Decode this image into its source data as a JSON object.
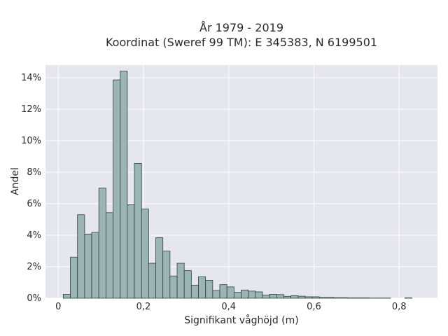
{
  "chart_data": {
    "type": "bar",
    "title_line1": "År 1979 - 2019",
    "title_line2": "Koordinat (Sweref 99 TM): E 345383, N 6199501",
    "xlabel": "Signifikant våghöjd (m)",
    "ylabel": "Andel",
    "xlim": [
      -0.03,
      0.89
    ],
    "ylim": [
      0,
      0.148
    ],
    "x_ticks": [
      {
        "value": 0.0,
        "label": "0"
      },
      {
        "value": 0.2,
        "label": "0,2"
      },
      {
        "value": 0.4,
        "label": "0,4"
      },
      {
        "value": 0.6,
        "label": "0,6"
      },
      {
        "value": 0.8,
        "label": "0,8"
      }
    ],
    "y_ticks": [
      {
        "value": 0.0,
        "label": "0%"
      },
      {
        "value": 0.02,
        "label": "2%"
      },
      {
        "value": 0.04,
        "label": "4%"
      },
      {
        "value": 0.06,
        "label": "6%"
      },
      {
        "value": 0.08,
        "label": "8%"
      },
      {
        "value": 0.1,
        "label": "10%"
      },
      {
        "value": 0.12,
        "label": "12%"
      },
      {
        "value": 0.14,
        "label": "14%"
      }
    ],
    "bin_width": 0.0167,
    "bin_starts": [
      0.0117,
      0.0284,
      0.0451,
      0.0618,
      0.0785,
      0.0952,
      0.1119,
      0.1286,
      0.1453,
      0.162,
      0.1787,
      0.1954,
      0.2121,
      0.2288,
      0.2455,
      0.2622,
      0.2789,
      0.2956,
      0.3123,
      0.329,
      0.3457,
      0.3624,
      0.3791,
      0.3958,
      0.4125,
      0.4292,
      0.4459,
      0.4626,
      0.4793,
      0.496,
      0.5127,
      0.5294,
      0.5461,
      0.5628,
      0.5795,
      0.5962,
      0.6129,
      0.6296,
      0.6463,
      0.663,
      0.6797,
      0.6964,
      0.7131,
      0.7298,
      0.7465,
      0.7632,
      0.8134
    ],
    "values": [
      0.0024,
      0.0261,
      0.053,
      0.0407,
      0.0418,
      0.0699,
      0.0543,
      0.1386,
      0.1442,
      0.0594,
      0.0856,
      0.0566,
      0.0222,
      0.0384,
      0.0299,
      0.0141,
      0.0222,
      0.0175,
      0.0082,
      0.0136,
      0.0113,
      0.0049,
      0.0086,
      0.0072,
      0.0037,
      0.0052,
      0.0045,
      0.004,
      0.002,
      0.0025,
      0.0023,
      0.0012,
      0.0016,
      0.0013,
      0.0009,
      0.0009,
      0.0005,
      0.0005,
      0.0003,
      0.0003,
      0.0002,
      0.0002,
      0.0002,
      0.0001,
      0.0001,
      0.0001,
      0.0002
    ],
    "colors": {
      "bar_fill": "#9bb5b5",
      "bar_stroke": "#2f4040",
      "plot_bg": "#e6e6ef",
      "grid": "#ffffff"
    }
  }
}
